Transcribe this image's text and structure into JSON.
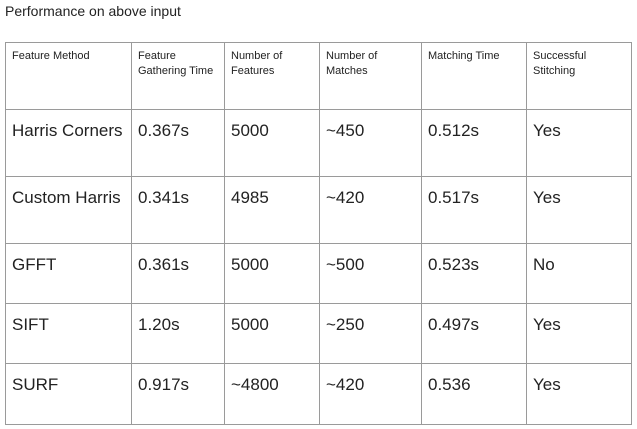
{
  "caption": "Performance on above input",
  "table": {
    "headers": [
      "Feature Method",
      "Feature Gathering Time",
      "Number of Features",
      "Number of Matches",
      "Matching Time",
      "Successful Stitching"
    ],
    "rows": [
      [
        "Harris Corners",
        "0.367s",
        "5000",
        "~450",
        "0.512s",
        "Yes"
      ],
      [
        "Custom Harris",
        "0.341s",
        "4985",
        "~420",
        "0.517s",
        "Yes"
      ],
      [
        "GFFT",
        "0.361s",
        "5000",
        "~500",
        "0.523s",
        "No"
      ],
      [
        "SIFT",
        "1.20s",
        "5000",
        "~250",
        "0.497s",
        "Yes"
      ],
      [
        "SURF",
        "0.917s",
        "~4800",
        "~420",
        "0.536",
        "Yes"
      ]
    ]
  }
}
